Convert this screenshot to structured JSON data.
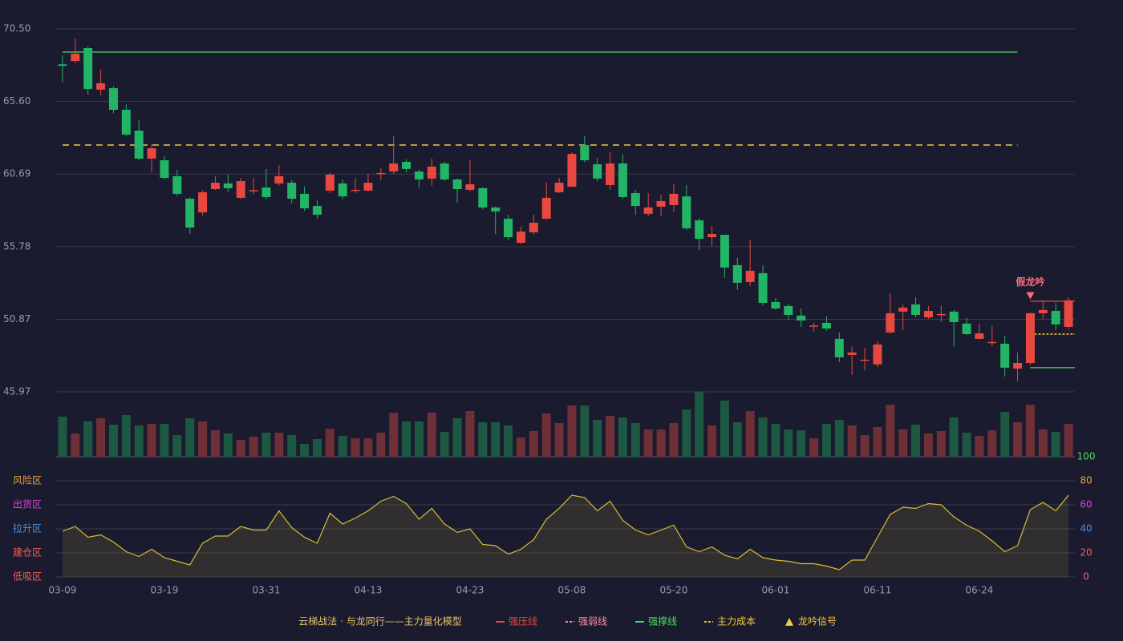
{
  "chart_data": {
    "type": "candlestick",
    "categories": [
      "03-09",
      null,
      null,
      null,
      null,
      null,
      null,
      null,
      "03-19",
      null,
      null,
      null,
      null,
      null,
      null,
      null,
      "03-31",
      null,
      null,
      null,
      null,
      null,
      null,
      null,
      "04-13",
      null,
      null,
      null,
      null,
      null,
      null,
      null,
      "04-23",
      null,
      null,
      null,
      null,
      null,
      null,
      null,
      "05-08",
      null,
      null,
      null,
      null,
      null,
      null,
      null,
      "05-20",
      null,
      null,
      null,
      null,
      null,
      null,
      null,
      "06-01",
      null,
      null,
      null,
      null,
      null,
      null,
      null,
      "06-11",
      null,
      null,
      null,
      null,
      null,
      null,
      null,
      "06-24",
      null,
      null,
      null,
      null,
      null,
      null,
      null
    ],
    "open": [
      68.1,
      68.33,
      69.2,
      66.39,
      66.49,
      65.03,
      63.62,
      61.73,
      61.62,
      60.54,
      59.02,
      58.1,
      59.67,
      60.05,
      59.08,
      59.55,
      59.78,
      60.05,
      60.1,
      59.35,
      58.53,
      59.56,
      60.05,
      59.6,
      59.57,
      60.73,
      60.86,
      61.51,
      60.86,
      60.38,
      61.4,
      60.32,
      59.62,
      59.73,
      58.43,
      57.67,
      56.04,
      56.75,
      57.67,
      59.46,
      59.83,
      62.65,
      61.35,
      59.94,
      61.4,
      59.4,
      58.0,
      58.48,
      58.59,
      59.18,
      57.56,
      56.42,
      56.58,
      54.53,
      53.39,
      53.99,
      52.04,
      51.77,
      51.12,
      50.4,
      50.63,
      49.55,
      48.46,
      48.1,
      47.82,
      49.98,
      51.39,
      51.88,
      51.0,
      51.2,
      51.39,
      50.58,
      49.55,
      49.32,
      49.22,
      47.54,
      47.92,
      51.28,
      51.44,
      50.36
    ],
    "high": [
      68.7,
      69.85,
      69.3,
      67.74,
      66.6,
      65.4,
      64.33,
      62.7,
      61.9,
      60.97,
      59.1,
      59.6,
      60.54,
      60.65,
      60.43,
      60.43,
      61.03,
      61.3,
      60.3,
      59.83,
      58.9,
      60.75,
      60.3,
      60.43,
      60.7,
      61.08,
      63.24,
      61.7,
      61.0,
      61.73,
      61.5,
      60.4,
      61.67,
      59.8,
      58.5,
      57.94,
      57.13,
      57.94,
      60.1,
      60.43,
      62.16,
      63.24,
      61.78,
      62.16,
      62.0,
      59.6,
      59.4,
      59.29,
      60.0,
      59.94,
      57.72,
      57.18,
      56.6,
      55.02,
      56.26,
      54.53,
      52.31,
      51.9,
      51.6,
      50.63,
      51.06,
      49.98,
      49.01,
      48.95,
      49.39,
      52.63,
      51.88,
      52.36,
      51.77,
      51.82,
      51.5,
      50.95,
      50.58,
      50.47,
      49.76,
      48.63,
      51.35,
      52.15,
      51.98,
      52.36
    ],
    "low": [
      66.9,
      68.2,
      66.06,
      66.0,
      64.8,
      63.25,
      61.62,
      60.81,
      60.32,
      59.18,
      56.64,
      57.9,
      59.6,
      59.46,
      59.0,
      59.3,
      59.0,
      59.9,
      58.7,
      58.2,
      57.67,
      59.4,
      59.0,
      59.4,
      59.5,
      60.27,
      60.7,
      60.8,
      59.78,
      59.9,
      60.2,
      58.75,
      59.5,
      58.3,
      56.64,
      56.2,
      55.95,
      56.6,
      57.6,
      59.4,
      59.8,
      61.5,
      60.2,
      59.6,
      59.0,
      57.94,
      57.83,
      57.83,
      58.1,
      56.9,
      55.56,
      55.83,
      53.66,
      52.85,
      53.12,
      51.8,
      51.5,
      50.85,
      50.36,
      50.03,
      50.1,
      47.98,
      47.11,
      47.44,
      47.65,
      49.9,
      50.14,
      51.0,
      50.9,
      50.68,
      49.01,
      49.8,
      49.5,
      49.06,
      47.0,
      46.68,
      47.8,
      50.9,
      50.14,
      50.2
    ],
    "close": [
      68.0,
      68.82,
      66.44,
      66.82,
      65.03,
      63.35,
      61.73,
      62.43,
      60.43,
      59.35,
      57.07,
      59.46,
      60.1,
      59.73,
      60.21,
      59.6,
      59.13,
      60.54,
      59.02,
      58.37,
      57.94,
      60.65,
      59.18,
      59.62,
      60.1,
      60.76,
      61.4,
      61.03,
      60.32,
      61.19,
      60.32,
      59.67,
      60.0,
      58.43,
      58.16,
      56.42,
      56.8,
      57.4,
      59.08,
      60.1,
      62.05,
      61.62,
      60.38,
      61.4,
      59.13,
      58.53,
      58.43,
      58.86,
      59.35,
      57.02,
      56.31,
      56.64,
      54.37,
      53.34,
      54.15,
      51.98,
      51.6,
      51.17,
      50.79,
      50.45,
      50.25,
      48.3,
      48.63,
      48.14,
      49.17,
      51.28,
      51.66,
      51.17,
      51.44,
      51.23,
      50.68,
      49.87,
      49.92,
      49.34,
      47.6,
      47.92,
      51.28,
      51.5,
      50.52,
      52.15
    ],
    "volume": [
      50,
      29,
      44,
      48,
      40,
      52,
      39,
      41,
      41,
      27,
      48,
      44,
      33,
      29,
      21,
      25,
      30,
      30,
      27,
      16,
      22,
      35,
      26,
      23,
      23,
      30,
      55,
      44,
      44,
      55,
      31,
      48,
      57,
      43,
      43,
      39,
      24,
      32,
      54,
      42,
      64,
      64,
      46,
      51,
      49,
      42,
      34,
      34,
      42,
      59,
      81,
      39,
      70,
      43,
      57,
      49,
      41,
      34,
      33,
      23,
      41,
      46,
      39,
      27,
      37,
      65,
      34,
      40,
      29,
      32,
      49,
      30,
      26,
      33,
      56,
      43,
      65,
      34,
      31,
      41
    ],
    "volume_lim": [
      0,
      81
    ],
    "indicator": [
      38,
      42,
      33,
      35,
      29,
      21,
      17,
      23,
      16,
      13,
      10,
      28,
      34,
      34,
      42,
      39,
      39,
      55,
      41,
      33,
      28,
      53,
      44,
      49,
      55,
      63,
      67,
      61,
      48,
      57,
      44,
      37,
      40,
      27,
      26,
      19,
      23,
      31,
      48,
      57,
      68,
      66,
      55,
      63,
      47,
      39,
      35,
      39,
      43,
      25,
      21,
      25,
      18,
      15,
      23,
      16,
      14,
      13,
      11,
      11,
      9,
      6,
      14,
      14,
      33,
      52,
      58,
      57,
      61,
      60,
      50,
      43,
      38,
      30,
      21,
      26,
      56,
      62,
      55,
      68
    ],
    "indicator_color": "#d9bd34",
    "up_color": "#e8483f",
    "down_color": "#23b566",
    "up_volume_color": "#6e2f37",
    "down_volume_color": "#1d5842",
    "ylim": [
      45.97,
      70.5
    ],
    "yticks": [
      {
        "value": 70.5,
        "label": "70.50"
      },
      {
        "value": 65.6,
        "label": "65.60"
      },
      60.69,
      55.78,
      50.87,
      45.97
    ],
    "y2lim": [
      0,
      100
    ],
    "y2ticks": [
      100,
      80,
      60,
      40,
      20,
      0
    ],
    "y2tick_colors": [
      "#4cd964",
      "#e8a040",
      "#e040e0",
      "#4a90e2",
      "#ff5a5a",
      "#ff5a5a"
    ],
    "zones": [
      {
        "label": "风险区",
        "value": 80,
        "color": "#e8a040"
      },
      {
        "label": "出货区",
        "value": 60,
        "color": "#e040e0"
      },
      {
        "label": "拉升区",
        "value": 40,
        "color": "#4a90e2"
      },
      {
        "label": "建仓区",
        "value": 20,
        "color": "#ff5a5a"
      },
      {
        "label": "低吸区",
        "value": 0,
        "color": "#ff5a5a"
      }
    ],
    "legend_title": "云梯战法 · 与龙同行——主力量化模型",
    "legend": [
      {
        "name": "强压线",
        "color": "#e8483f",
        "style": "line"
      },
      {
        "name": "强弱线",
        "color": "#ff8fa0",
        "style": "dash"
      },
      {
        "name": "强撑线",
        "color": "#4cd964",
        "style": "line"
      },
      {
        "name": "主力成本",
        "color": "#f5c842",
        "style": "dash"
      },
      {
        "name": "龙吟信号",
        "color": "#f5c842",
        "style": "triangle"
      }
    ],
    "levels": [
      {
        "legend": 2,
        "value": 68.93,
        "start": 0,
        "end": 75
      },
      {
        "legend": 3,
        "value": 62.65,
        "start": 0,
        "end": 75
      },
      {
        "legend": 0,
        "value": 52.09,
        "start": 76,
        "end": 79
      },
      {
        "legend": 2,
        "value": 47.6,
        "start": 76,
        "end": 79
      },
      {
        "legend": 3,
        "value": 49.87,
        "start": 76,
        "end": 79
      }
    ],
    "annotation": {
      "text": "假龙吟",
      "index": 76,
      "color": "#ff6b7a"
    },
    "grid": true
  }
}
